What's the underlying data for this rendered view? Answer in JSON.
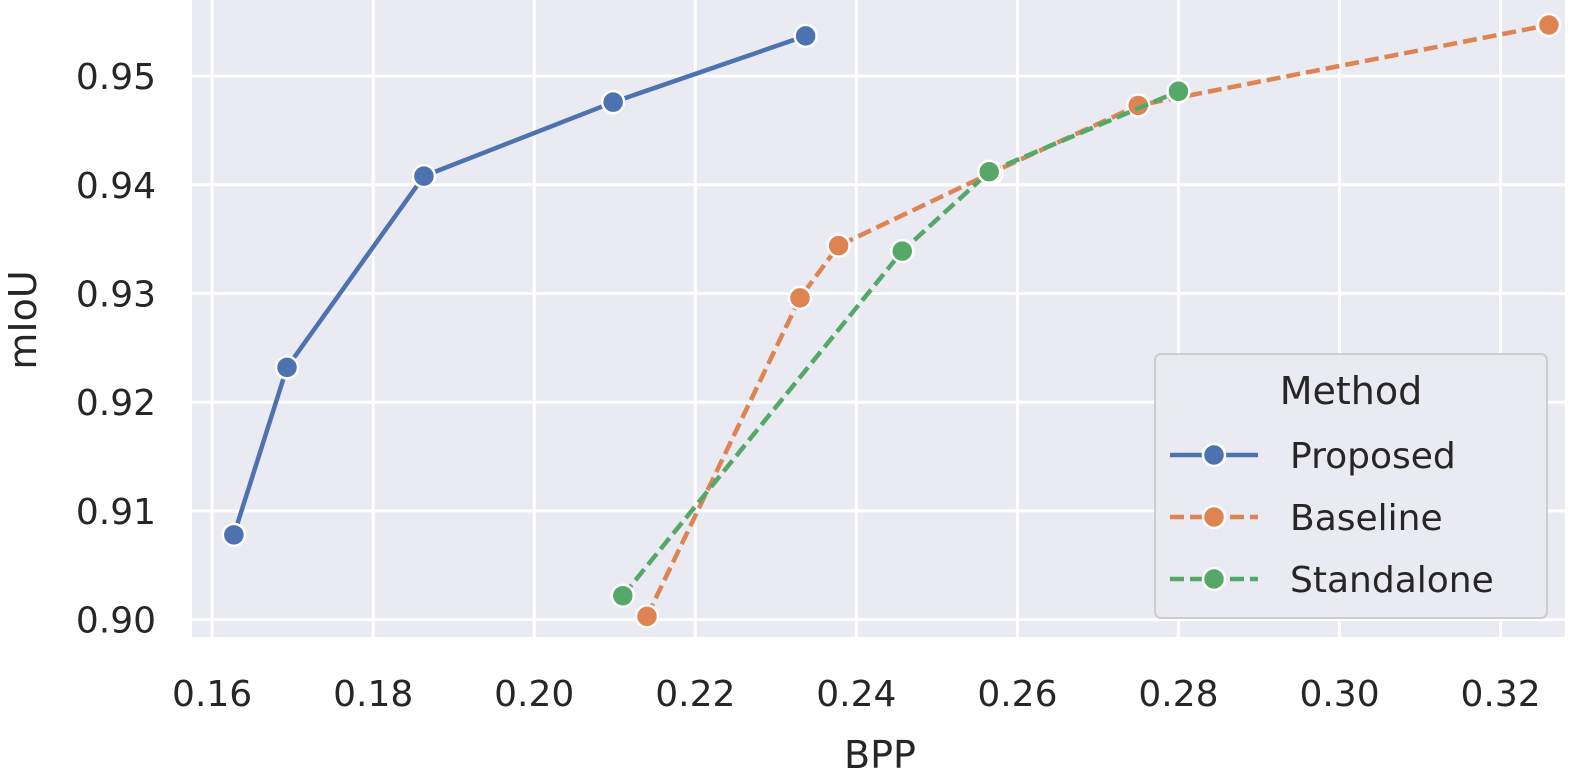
{
  "chart_data": {
    "type": "line",
    "xlabel": "BPP",
    "ylabel": "mIoU",
    "xlim": [
      0.1575,
      0.328
    ],
    "ylim": [
      0.8984,
      0.957
    ],
    "xticks": [
      0.16,
      0.18,
      0.2,
      0.22,
      0.24,
      0.26,
      0.28,
      0.3,
      0.32
    ],
    "xtick_labels": [
      "0.16",
      "0.18",
      "0.20",
      "0.22",
      "0.24",
      "0.26",
      "0.28",
      "0.30",
      "0.32"
    ],
    "yticks": [
      0.9,
      0.91,
      0.92,
      0.93,
      0.94,
      0.95
    ],
    "ytick_labels": [
      "0.90",
      "0.91",
      "0.92",
      "0.93",
      "0.94",
      "0.95"
    ],
    "grid": true,
    "legend": {
      "title": "Method",
      "position": "lower-right"
    },
    "series": [
      {
        "name": "Proposed",
        "color": "#4c72b0",
        "linestyle": "solid",
        "x": [
          0.1627,
          0.1693,
          0.1863,
          0.2098,
          0.2337
        ],
        "y": [
          0.9078,
          0.9232,
          0.9408,
          0.9476,
          0.9537
        ]
      },
      {
        "name": "Baseline",
        "color": "#dd8452",
        "linestyle": "dashed",
        "x": [
          0.214,
          0.233,
          0.2378,
          0.2568,
          0.275,
          0.326
        ],
        "y": [
          0.9003,
          0.9296,
          0.9344,
          0.9411,
          0.9473,
          0.9547
        ]
      },
      {
        "name": "Standalone",
        "color": "#55a868",
        "linestyle": "dashed",
        "x": [
          0.211,
          0.2457,
          0.2565,
          0.28
        ],
        "y": [
          0.9022,
          0.9339,
          0.9412,
          0.9486
        ]
      }
    ]
  }
}
